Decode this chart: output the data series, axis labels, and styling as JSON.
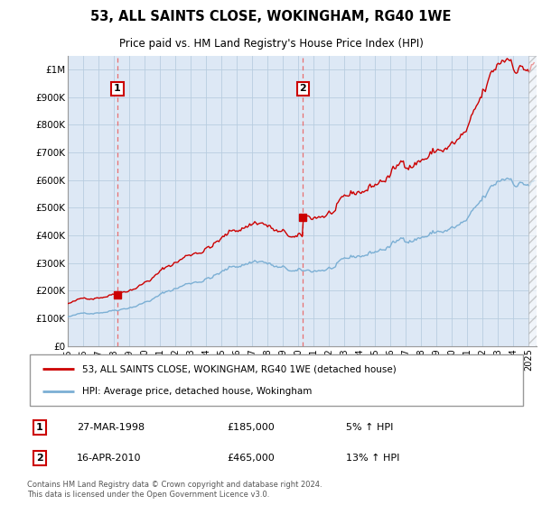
{
  "title": "53, ALL SAINTS CLOSE, WOKINGHAM, RG40 1WE",
  "subtitle": "Price paid vs. HM Land Registry's House Price Index (HPI)",
  "legend_label_red": "53, ALL SAINTS CLOSE, WOKINGHAM, RG40 1WE (detached house)",
  "legend_label_blue": "HPI: Average price, detached house, Wokingham",
  "transaction1_date": "27-MAR-1998",
  "transaction1_price": "£185,000",
  "transaction1_hpi": "5% ↑ HPI",
  "transaction2_date": "16-APR-2010",
  "transaction2_price": "£465,000",
  "transaction2_hpi": "13% ↑ HPI",
  "footer": "Contains HM Land Registry data © Crown copyright and database right 2024.\nThis data is licensed under the Open Government Licence v3.0.",
  "red_color": "#cc0000",
  "blue_color": "#7bafd4",
  "dashed_red": "#e87070",
  "background_color": "#dde8f5",
  "chart_bg": "#dde8f5",
  "grid_color": "#b8cde0",
  "sale1_year": 1998.23,
  "sale2_year": 2010.29,
  "sale1_price": 185000,
  "sale2_price": 465000,
  "xmin": 1995.0,
  "xmax": 2025.5,
  "ylim_min": 0,
  "ylim_max": 1050000,
  "yticks": [
    0,
    100000,
    200000,
    300000,
    400000,
    500000,
    600000,
    700000,
    800000,
    900000,
    1000000
  ],
  "ytick_labels": [
    "£0",
    "£100K",
    "£200K",
    "£300K",
    "£400K",
    "£500K",
    "£600K",
    "£700K",
    "£800K",
    "£900K",
    "£1M"
  ]
}
